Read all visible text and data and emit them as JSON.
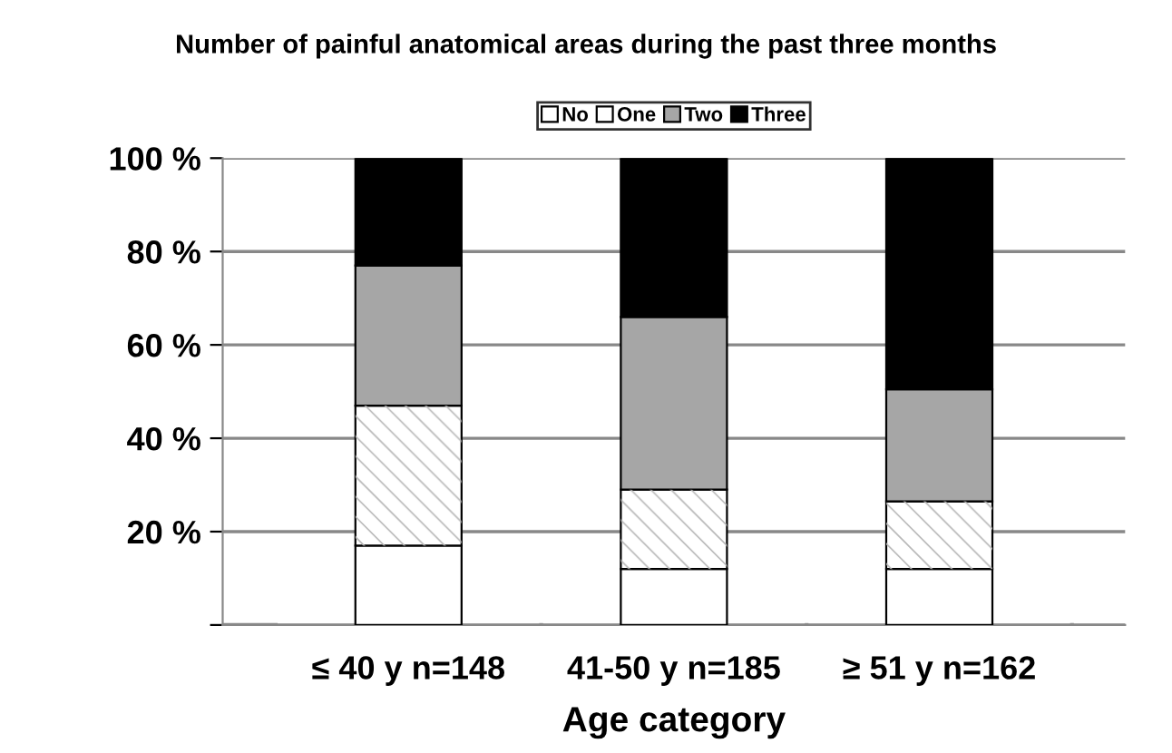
{
  "chart_data": {
    "type": "bar",
    "stacked": true,
    "title": "Number of painful anatomical areas during the past three months",
    "xlabel": "Age category",
    "categories": [
      "≤ 40 y n=148",
      "41-50 y n=185",
      "≥ 51 y n=162"
    ],
    "series": [
      {
        "name": "No",
        "color": "#ffffff",
        "values": [
          17,
          12,
          12
        ]
      },
      {
        "name": "One",
        "color": "#ffffff",
        "values": [
          30,
          17,
          14.5
        ]
      },
      {
        "name": "Two",
        "color": "#a6a6a6",
        "values": [
          30,
          37,
          24
        ]
      },
      {
        "name": "Three",
        "color": "#000000",
        "values": [
          23,
          34,
          49.5
        ]
      }
    ],
    "ylim": [
      0,
      100
    ],
    "yticks": [
      {
        "value": 0,
        "label": null
      },
      {
        "value": 20,
        "label": "20 %"
      },
      {
        "value": 40,
        "label": "40 %"
      },
      {
        "value": 60,
        "label": "60 %"
      },
      {
        "value": 80,
        "label": "80 %"
      },
      {
        "value": 100,
        "label": "100 %"
      }
    ],
    "grid": "y",
    "legend": "top"
  }
}
